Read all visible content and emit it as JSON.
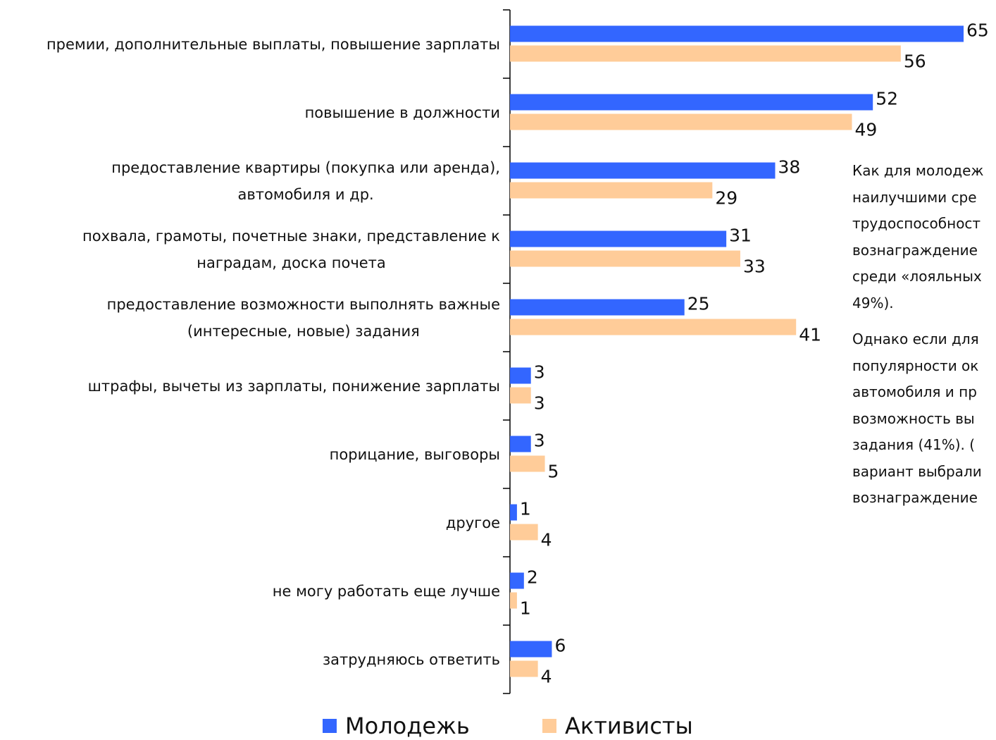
{
  "chart_data": {
    "type": "bar",
    "orientation": "horizontal",
    "categories": [
      "премии, дополнительные выплаты, повышение зарплаты",
      "повышение в должности",
      "предоставление квартиры (покупка или аренда),\nавтомобиля и др.",
      "похвала, грамоты, почетные знаки, представление к\nнаградам, доска почета",
      "предоставление возможности выполнять важные\n(интересные, новые) задания",
      "штрафы, вычеты из зарплаты, понижение зарплаты",
      "порицание, выговоры",
      "другое",
      "не могу работать еще лучше",
      "затрудняюсь ответить"
    ],
    "series": [
      {
        "name": "Молодежь",
        "color": "#3366ff",
        "values": [
          65,
          52,
          38,
          31,
          25,
          3,
          3,
          1,
          2,
          6
        ]
      },
      {
        "name": "Активисты",
        "color": "#ffcc99",
        "values": [
          56,
          49,
          29,
          33,
          41,
          3,
          5,
          4,
          1,
          4
        ]
      }
    ],
    "xlim": [
      0,
      65
    ],
    "legend": "bottom"
  },
  "text_panel": {
    "paragraphs": [
      [
        "Как для молодеж",
        "наилучшими сре",
        "трудоспособност",
        "вознаграждение",
        "среди «лояльных",
        "49%)."
      ],
      [
        "Однако если для",
        "популярности ок",
        "автомобиля и пр",
        "возможность вы",
        "задания (41%). (",
        "вариант выбрали",
        "вознаграждение"
      ]
    ]
  }
}
